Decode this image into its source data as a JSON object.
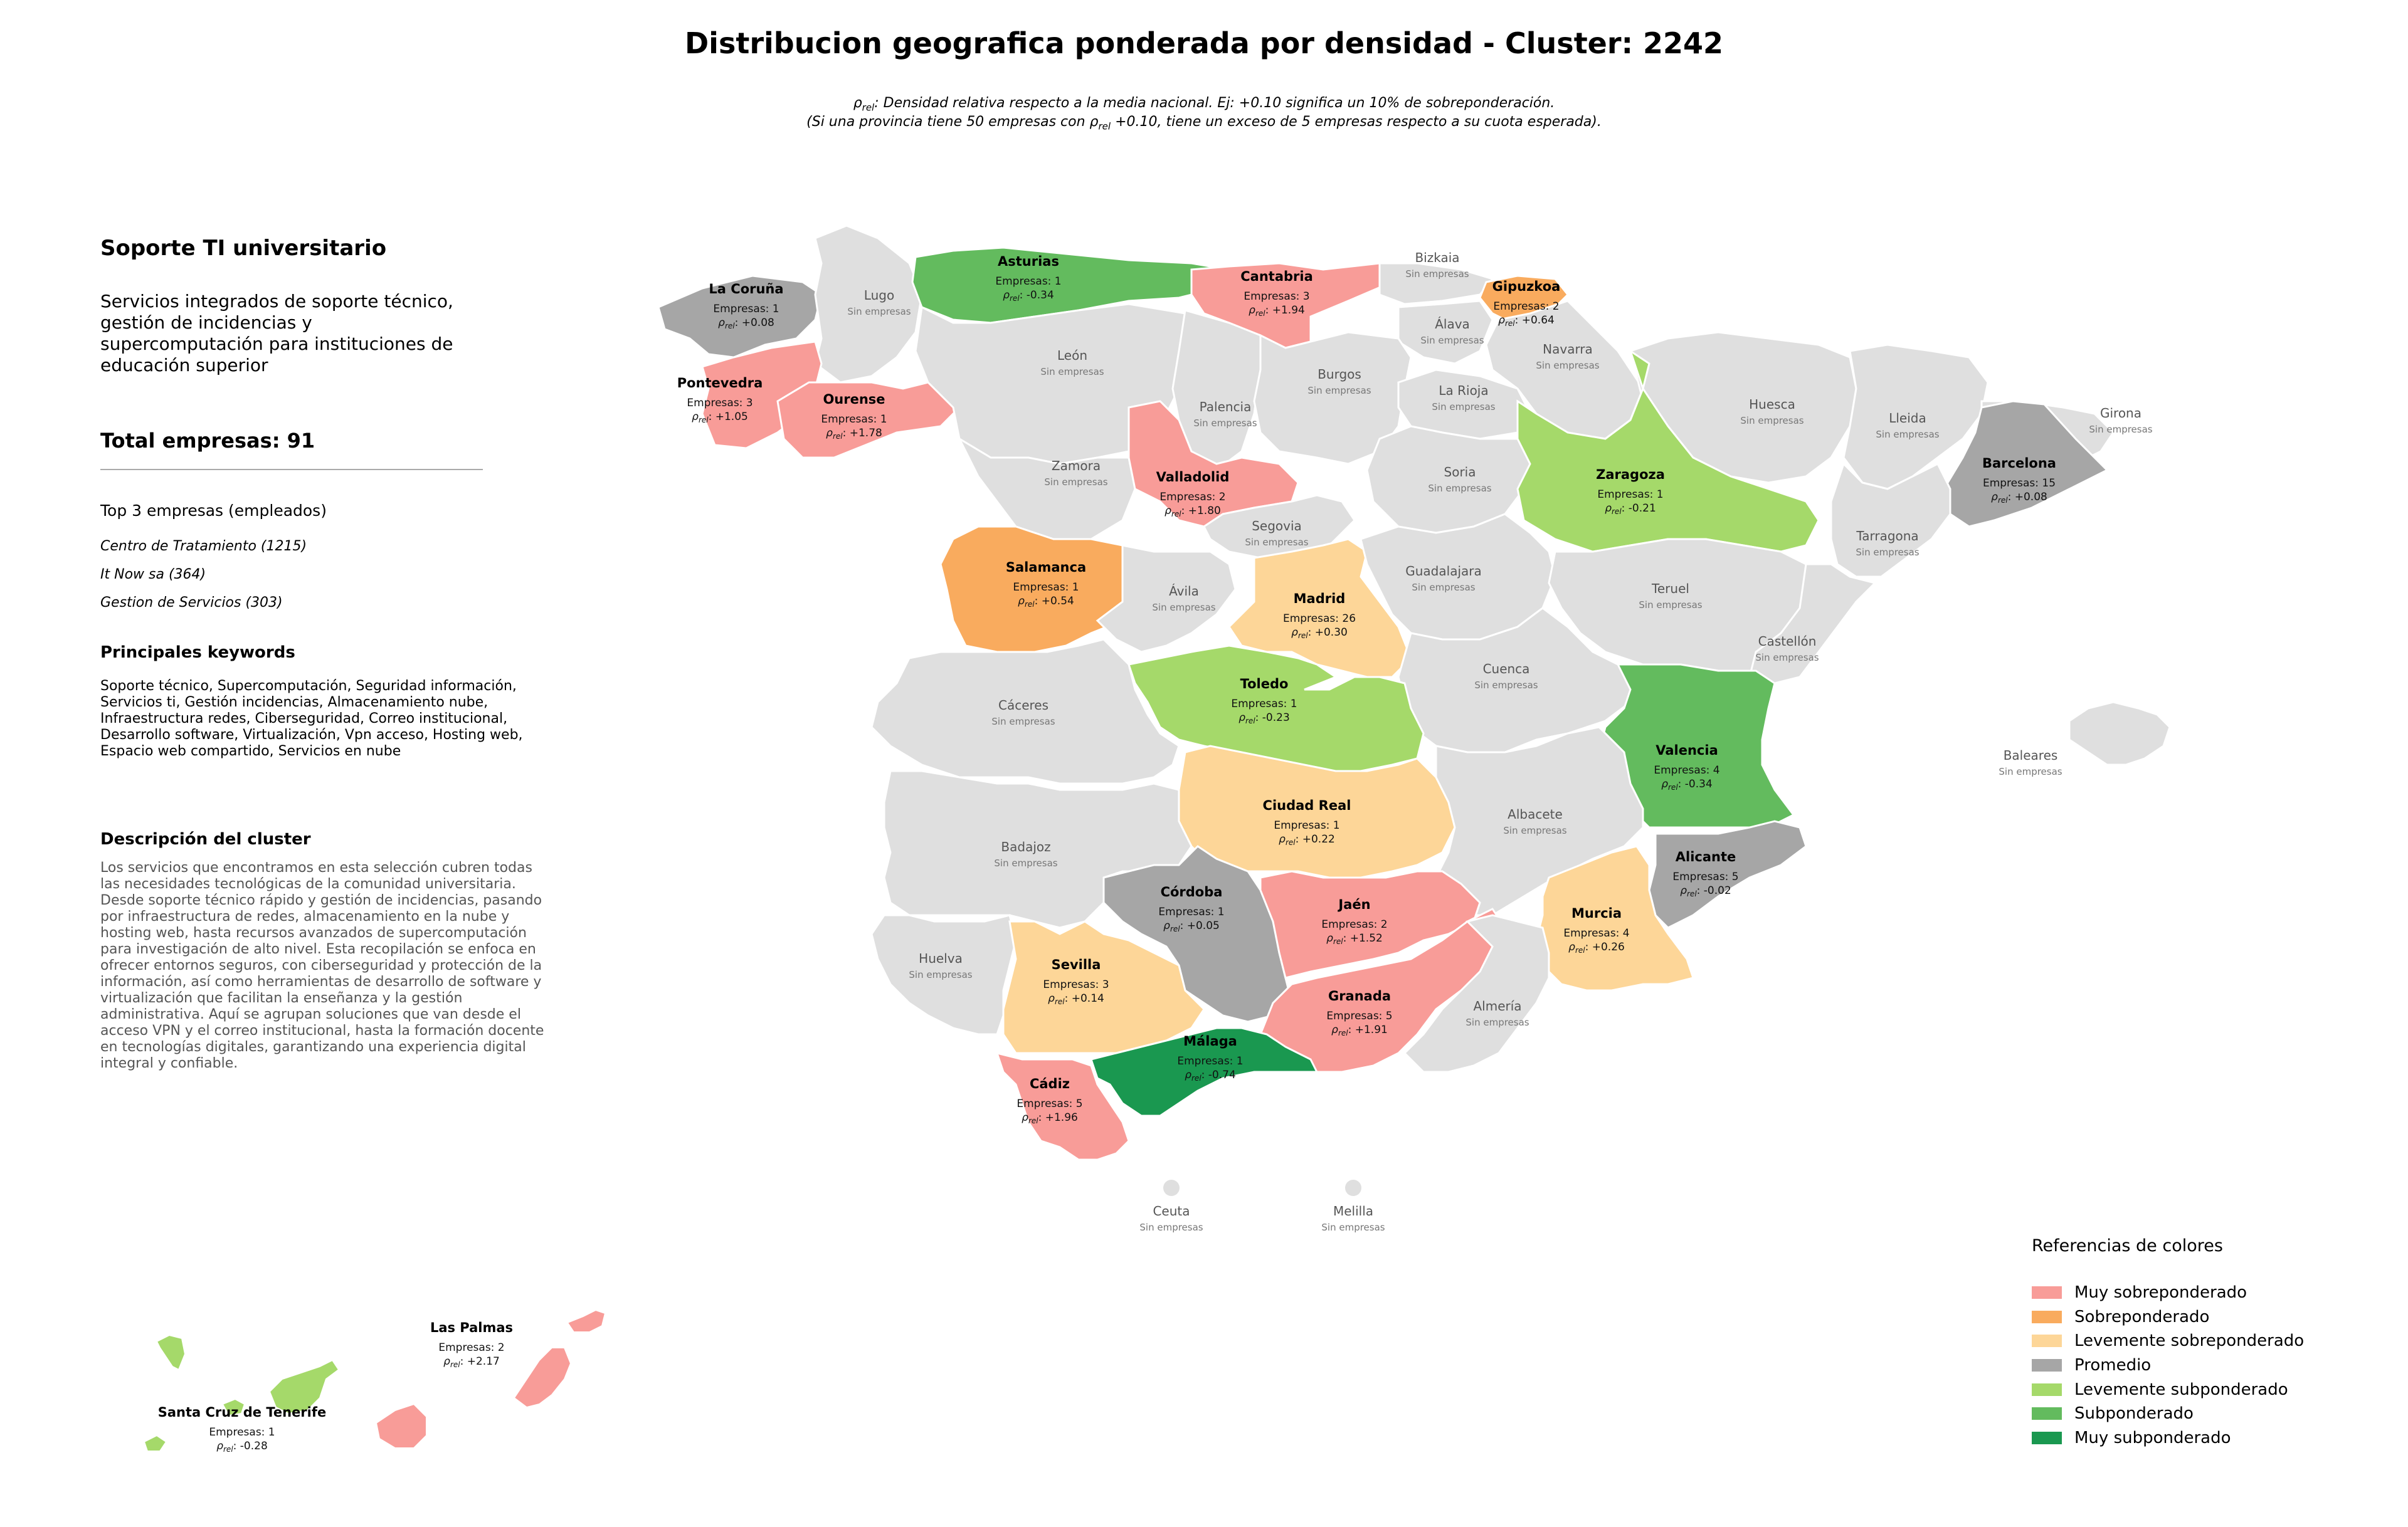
{
  "title": "Distribucion geografica ponderada por densidad - Cluster: 2242",
  "subtitle_line1": "ρrel: Densidad relativa respecto a la media nacional. Ej: +0.10 significa un 10% de sobreponderación.",
  "subtitle_line2": "(Si una provincia tiene 50 empresas con ρrel +0.10, tiene un exceso de 5 empresas respecto a su cuota esperada).",
  "panel": {
    "title": "Soporte TI universitario",
    "description": "Servicios integrados de soporte técnico, gestión de incidencias y supercomputación para instituciones de educación superior",
    "total": "Total empresas: 91",
    "top_heading": "Top 3 empresas (empleados)",
    "top_companies": [
      "Centro de Tratamiento (1215)",
      "It Now sa (364)",
      "Gestion de Servicios (303)"
    ],
    "keywords_heading": "Principales keywords",
    "keywords": "Soporte técnico, Supercomputación, Seguridad información, Servicios ti, Gestión incidencias, Almacenamiento nube, Infraestructura redes, Ciberseguridad, Correo institucional, Desarrollo software, Virtualización, Vpn acceso, Hosting web, Espacio web compartido, Servicios en nube",
    "cluster_heading": "Descripción del cluster",
    "cluster_text": "Los servicios que encontramos en esta selección cubren todas las necesidades tecnológicas de la comunidad universitaria. Desde soporte técnico rápido y gestión de incidencias, pasando por infraestructura de redes, almacenamiento en la nube y hosting web, hasta recursos avanzados de supercomputación para investigación de alto nivel. Esta recopilación se enfoca en ofrecer entornos seguros, con ciberseguridad y protección de la información, así como herramientas de desarrollo de software y virtualización que facilitan la enseñanza y la gestión administrativa. Aquí se agrupan soluciones que van desde el acceso VPN y el correo institucional, hasta la formación docente en tecnologías digitales, garantizando una experiencia digital integral y confiable."
  },
  "legend": {
    "title": "Referencias de colores",
    "items": [
      {
        "label": "Muy sobreponderado",
        "color": "#f89c98"
      },
      {
        "label": "Sobreponderado",
        "color": "#f9ab5e"
      },
      {
        "label": "Levemente sobreponderado",
        "color": "#fdd698"
      },
      {
        "label": "Promedio",
        "color": "#a6a6a6"
      },
      {
        "label": "Levemente subponderado",
        "color": "#a5d96a"
      },
      {
        "label": "Subponderado",
        "color": "#63bb5e"
      },
      {
        "label": "Muy subponderado",
        "color": "#1a9850"
      }
    ]
  },
  "colors": {
    "none": "#dfdfdf",
    "border": "#ffffff",
    "grey_text": "#777777"
  },
  "provinces": [
    {
      "name": "La Coruña",
      "count": "Empresas: 1",
      "rho": "+0.08",
      "cat": "Promedio"
    },
    {
      "name": "Lugo",
      "none": "Sin empresas"
    },
    {
      "name": "Asturias",
      "count": "Empresas: 1",
      "rho": "-0.34",
      "cat": "Subponderado"
    },
    {
      "name": "Cantabria",
      "count": "Empresas: 3",
      "rho": "+1.94",
      "cat": "Muy sobreponderado"
    },
    {
      "name": "Bizkaia",
      "none": "Sin empresas"
    },
    {
      "name": "Gipuzkoa",
      "count": "Empresas: 2",
      "rho": "+0.64",
      "cat": "Sobreponderado"
    },
    {
      "name": "Álava",
      "none": "Sin empresas"
    },
    {
      "name": "Navarra",
      "none": "Sin empresas"
    },
    {
      "name": "Pontevedra",
      "count": "Empresas: 3",
      "rho": "+1.05",
      "cat": "Muy sobreponderado"
    },
    {
      "name": "Ourense",
      "count": "Empresas: 1",
      "rho": "+1.78",
      "cat": "Muy sobreponderado"
    },
    {
      "name": "León",
      "none": "Sin empresas"
    },
    {
      "name": "Palencia",
      "none": "Sin empresas"
    },
    {
      "name": "Burgos",
      "none": "Sin empresas"
    },
    {
      "name": "La Rioja",
      "none": "Sin empresas"
    },
    {
      "name": "Huesca",
      "none": "Sin empresas"
    },
    {
      "name": "Lleida",
      "none": "Sin empresas"
    },
    {
      "name": "Girona",
      "none": "Sin empresas"
    },
    {
      "name": "Barcelona",
      "count": "Empresas: 15",
      "rho": "+0.08",
      "cat": "Promedio"
    },
    {
      "name": "Zamora",
      "none": "Sin empresas"
    },
    {
      "name": "Valladolid",
      "count": "Empresas: 2",
      "rho": "+1.80",
      "cat": "Muy sobreponderado"
    },
    {
      "name": "Soria",
      "none": "Sin empresas"
    },
    {
      "name": "Zaragoza",
      "count": "Empresas: 1",
      "rho": "-0.21",
      "cat": "Levemente subponderado"
    },
    {
      "name": "Tarragona",
      "none": "Sin empresas"
    },
    {
      "name": "Segovia",
      "none": "Sin empresas"
    },
    {
      "name": "Salamanca",
      "count": "Empresas: 1",
      "rho": "+0.54",
      "cat": "Sobreponderado"
    },
    {
      "name": "Ávila",
      "none": "Sin empresas"
    },
    {
      "name": "Madrid",
      "count": "Empresas: 26",
      "rho": "+0.30",
      "cat": "Levemente sobreponderado"
    },
    {
      "name": "Guadalajara",
      "none": "Sin empresas"
    },
    {
      "name": "Teruel",
      "none": "Sin empresas"
    },
    {
      "name": "Castellón",
      "none": "Sin empresas"
    },
    {
      "name": "Cuenca",
      "none": "Sin empresas"
    },
    {
      "name": "Toledo",
      "count": "Empresas: 1",
      "rho": "-0.23",
      "cat": "Levemente subponderado"
    },
    {
      "name": "Cáceres",
      "none": "Sin empresas"
    },
    {
      "name": "Valencia",
      "count": "Empresas: 4",
      "rho": "-0.34",
      "cat": "Subponderado"
    },
    {
      "name": "Baleares",
      "none": "Sin empresas"
    },
    {
      "name": "Ciudad Real",
      "count": "Empresas: 1",
      "rho": "+0.22",
      "cat": "Levemente sobreponderado"
    },
    {
      "name": "Albacete",
      "none": "Sin empresas"
    },
    {
      "name": "Badajoz",
      "none": "Sin empresas"
    },
    {
      "name": "Alicante",
      "count": "Empresas: 5",
      "rho": "-0.02",
      "cat": "Promedio"
    },
    {
      "name": "Córdoba",
      "count": "Empresas: 1",
      "rho": "+0.05",
      "cat": "Promedio"
    },
    {
      "name": "Jaén",
      "count": "Empresas: 2",
      "rho": "+1.52",
      "cat": "Muy sobreponderado"
    },
    {
      "name": "Murcia",
      "count": "Empresas: 4",
      "rho": "+0.26",
      "cat": "Levemente sobreponderado"
    },
    {
      "name": "Huelva",
      "none": "Sin empresas"
    },
    {
      "name": "Sevilla",
      "count": "Empresas: 3",
      "rho": "+0.14",
      "cat": "Levemente sobreponderado"
    },
    {
      "name": "Granada",
      "count": "Empresas: 5",
      "rho": "+1.91",
      "cat": "Muy sobreponderado"
    },
    {
      "name": "Almería",
      "none": "Sin empresas"
    },
    {
      "name": "Málaga",
      "count": "Empresas: 1",
      "rho": "-0.74",
      "cat": "Muy subponderado"
    },
    {
      "name": "Cádiz",
      "count": "Empresas: 5",
      "rho": "+1.96",
      "cat": "Muy sobreponderado"
    },
    {
      "name": "Ceuta",
      "none": "Sin empresas"
    },
    {
      "name": "Melilla",
      "none": "Sin empresas"
    },
    {
      "name": "Las Palmas",
      "count": "Empresas: 2",
      "rho": "+2.17",
      "cat": "Muy sobreponderado"
    },
    {
      "name": "Santa Cruz de Tenerife",
      "count": "Empresas: 1",
      "rho": "-0.28",
      "cat": "Levemente subponderado"
    }
  ]
}
